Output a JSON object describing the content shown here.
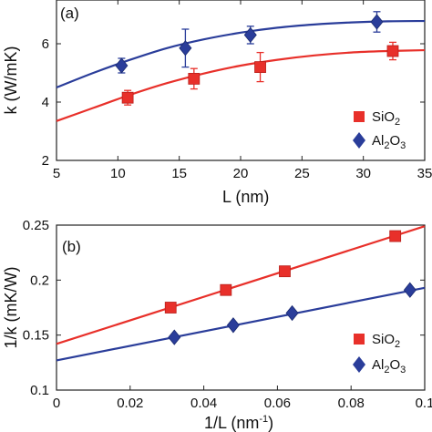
{
  "chart_data": [
    {
      "type": "scatter",
      "panel_label": "(a)",
      "xlabel": "L (nm)",
      "ylabel": "k (W/mK)",
      "xlim": [
        5,
        35
      ],
      "ylim": [
        2,
        7.5
      ],
      "xticks": [
        "5",
        "10",
        "15",
        "20",
        "25",
        "30",
        "35"
      ],
      "yticks": [
        "2",
        "4",
        "6"
      ],
      "legend": {
        "placement": "bottom-right"
      },
      "series": [
        {
          "name": "SiO",
          "name_sub": "2",
          "marker": "square",
          "color": "#e8302a",
          "x": [
            10.8,
            16.2,
            21.6,
            32.4
          ],
          "y": [
            4.15,
            4.8,
            5.2,
            5.75
          ],
          "err": [
            0.25,
            0.35,
            0.5,
            0.3
          ],
          "fit": {
            "x": [
              5,
              8,
              11,
              14,
              17,
              20,
              23,
              26,
              29,
              32,
              35
            ],
            "y": [
              3.35,
              3.8,
              4.25,
              4.65,
              4.98,
              5.25,
              5.45,
              5.6,
              5.7,
              5.75,
              5.78
            ]
          }
        },
        {
          "name": "Al",
          "name_sub": "2",
          "name_mid": "O",
          "name_sub2": "3",
          "marker": "diamond",
          "color": "#2a3d9a",
          "x": [
            10.3,
            15.5,
            20.8,
            31.1
          ],
          "y": [
            5.25,
            5.85,
            6.3,
            6.75
          ],
          "err": [
            0.25,
            0.65,
            0.3,
            0.35
          ],
          "fit": {
            "x": [
              5,
              8,
              11,
              14,
              17,
              20,
              23,
              26,
              29,
              32,
              35
            ],
            "y": [
              4.5,
              5.0,
              5.45,
              5.85,
              6.15,
              6.38,
              6.55,
              6.66,
              6.73,
              6.77,
              6.78
            ]
          }
        }
      ]
    },
    {
      "type": "scatter",
      "panel_label": "(b)",
      "xlabel": "1/L (nm",
      "xlabel_sup": "-1",
      "xlabel_end": ")",
      "ylabel": "1/k (mK/W)",
      "xlim": [
        0,
        0.1
      ],
      "ylim": [
        0.1,
        0.25
      ],
      "xticks": [
        "0",
        "0.02",
        "0.04",
        "0.06",
        "0.08",
        "0.1"
      ],
      "yticks": [
        "0.1",
        "0.15",
        "0.2",
        "0.25"
      ],
      "legend": {
        "placement": "bottom-right"
      },
      "series": [
        {
          "name": "SiO",
          "name_sub": "2",
          "marker": "square",
          "color": "#e8302a",
          "x": [
            0.031,
            0.046,
            0.062,
            0.092
          ],
          "y": [
            0.175,
            0.191,
            0.208,
            0.24
          ],
          "fit": {
            "x": [
              0,
              0.1
            ],
            "y": [
              0.142,
              0.249
            ]
          }
        },
        {
          "name": "Al",
          "name_sub": "2",
          "name_mid": "O",
          "name_sub2": "3",
          "marker": "diamond",
          "color": "#2a3d9a",
          "x": [
            0.032,
            0.048,
            0.064,
            0.096
          ],
          "y": [
            0.148,
            0.159,
            0.17,
            0.191
          ],
          "fit": {
            "x": [
              0,
              0.1
            ],
            "y": [
              0.127,
              0.193
            ]
          }
        }
      ]
    }
  ]
}
